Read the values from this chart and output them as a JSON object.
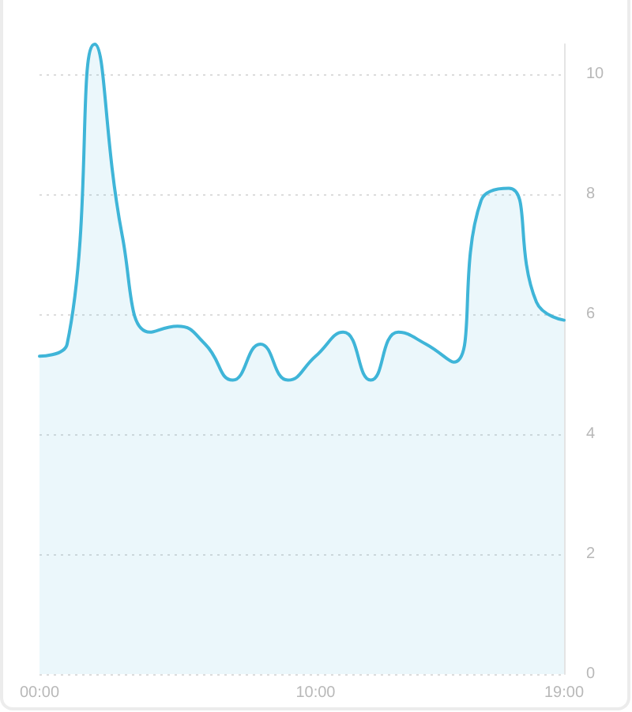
{
  "chart_data": {
    "type": "area",
    "x": [
      0,
      1,
      2,
      3,
      4,
      5,
      6,
      7,
      8,
      9,
      10,
      11,
      12,
      13,
      14,
      15,
      16,
      17,
      18,
      19
    ],
    "values": [
      5.3,
      5.5,
      10.5,
      7.3,
      5.7,
      5.8,
      5.5,
      4.9,
      5.5,
      4.9,
      5.3,
      5.7,
      4.9,
      5.7,
      5.5,
      5.2,
      7.9,
      8.1,
      6.2,
      5.9
    ],
    "color": "#3fb5d8",
    "xlim": [
      0,
      19
    ],
    "xticks": [
      {
        "value": 0,
        "label": "00:00"
      },
      {
        "value": 10,
        "label": "10:00"
      },
      {
        "value": 19,
        "label": "19:00"
      }
    ],
    "ylim": [
      0,
      10.5
    ],
    "yticks": [
      0,
      2,
      4,
      6,
      8,
      10
    ],
    "grid": "y",
    "marker": "none"
  }
}
